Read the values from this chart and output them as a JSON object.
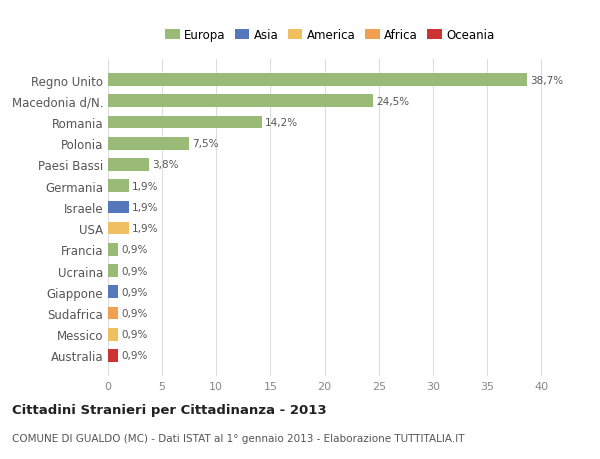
{
  "countries": [
    "Australia",
    "Messico",
    "Sudafrica",
    "Giappone",
    "Ucraina",
    "Francia",
    "USA",
    "Israele",
    "Germania",
    "Paesi Bassi",
    "Polonia",
    "Romania",
    "Macedonia d/N.",
    "Regno Unito"
  ],
  "values": [
    0.9,
    0.9,
    0.9,
    0.9,
    0.9,
    0.9,
    1.9,
    1.9,
    1.9,
    3.8,
    7.5,
    14.2,
    24.5,
    38.7
  ],
  "labels": [
    "0,9%",
    "0,9%",
    "0,9%",
    "0,9%",
    "0,9%",
    "0,9%",
    "1,9%",
    "1,9%",
    "1,9%",
    "3,8%",
    "7,5%",
    "14,2%",
    "24,5%",
    "38,7%"
  ],
  "colors": [
    "#cc3333",
    "#f0c060",
    "#f0a050",
    "#5577bb",
    "#99bb77",
    "#99bb77",
    "#f0c060",
    "#5577bb",
    "#99bb77",
    "#99bb77",
    "#99bb77",
    "#99bb77",
    "#99bb77",
    "#99bb77"
  ],
  "legend_labels": [
    "Europa",
    "Asia",
    "America",
    "Africa",
    "Oceania"
  ],
  "legend_colors": [
    "#99bb77",
    "#5577bb",
    "#f0c060",
    "#f0a050",
    "#cc3333"
  ],
  "title": "Cittadini Stranieri per Cittadinanza - 2013",
  "subtitle": "COMUNE DI GUALDO (MC) - Dati ISTAT al 1° gennaio 2013 - Elaborazione TUTTITALIA.IT",
  "xlim": [
    0,
    41
  ],
  "xticks": [
    0,
    5,
    10,
    15,
    20,
    25,
    30,
    35,
    40
  ],
  "bg_color": "#ffffff",
  "grid_color": "#dddddd",
  "bar_height": 0.6
}
